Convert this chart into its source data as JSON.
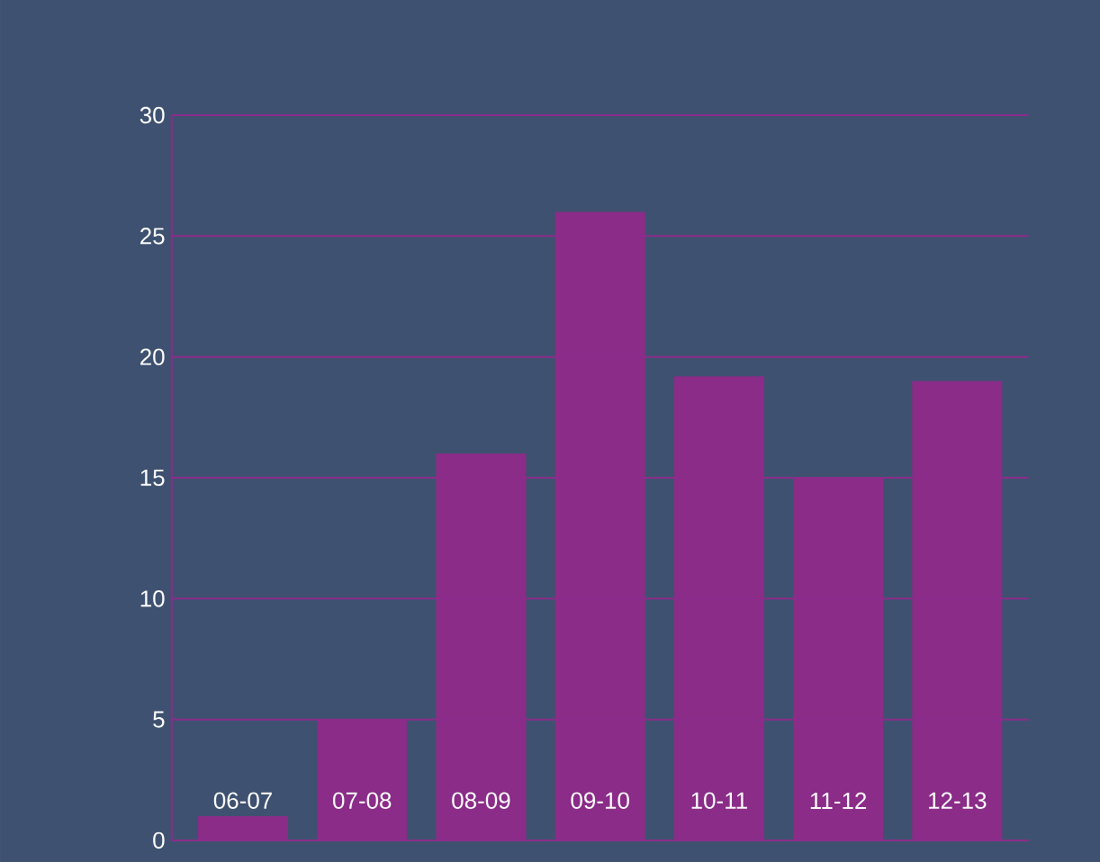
{
  "chart_data": {
    "type": "bar",
    "categories": [
      "06-07",
      "07-08",
      "08-09",
      "09-10",
      "10-11",
      "11-12",
      "12-13"
    ],
    "values": [
      1,
      5,
      16,
      26,
      19.2,
      15,
      19
    ],
    "color": "#8a2c88",
    "ylim": [
      0,
      30
    ],
    "yticks": [
      0,
      5,
      10,
      15,
      20,
      25,
      30
    ],
    "grid": "y"
  }
}
